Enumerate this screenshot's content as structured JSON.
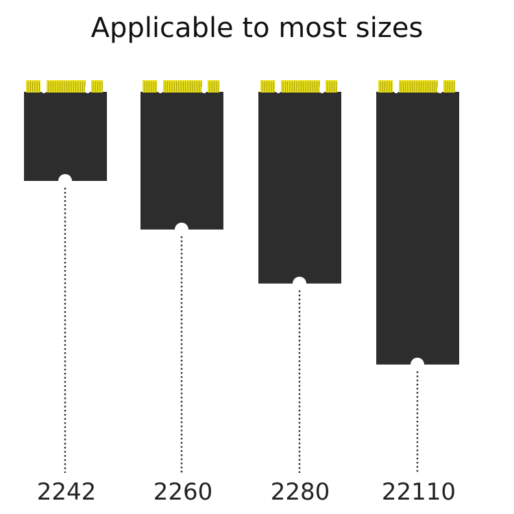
{
  "title": "Applicable to most sizes",
  "colors": {
    "board": "#2d2d2d",
    "contacts": "#e8df1a",
    "contact_lines": "#8a8210",
    "dotted_line": "#333333"
  },
  "cards": [
    {
      "label": "2242",
      "length_mm": 42
    },
    {
      "label": "2260",
      "length_mm": 60
    },
    {
      "label": "2280",
      "length_mm": 80
    },
    {
      "label": "22110",
      "length_mm": 110
    }
  ]
}
